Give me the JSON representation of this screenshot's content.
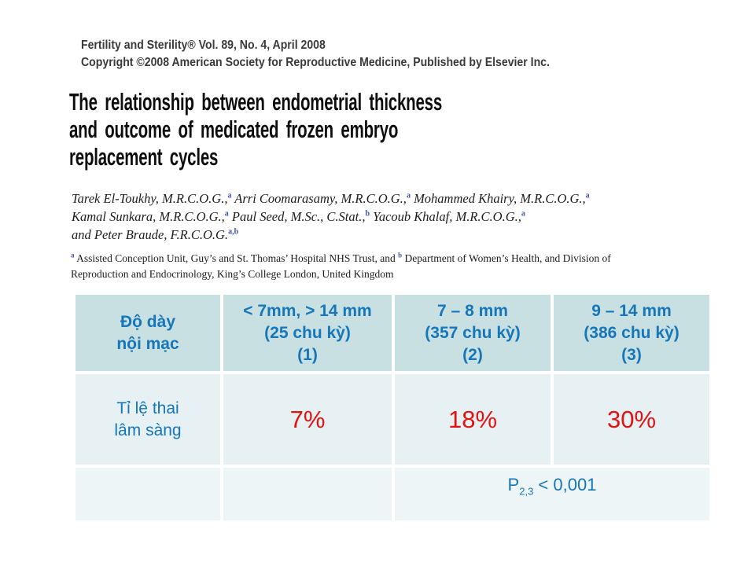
{
  "paper": {
    "journal_line1": "Fertility and Sterility® Vol. 89, No. 4, April 2008",
    "journal_line2": "Copyright ©2008 American Society for Reproductive Medicine, Published by Elsevier Inc.",
    "journal_block": "Fertility and Sterility® Vol. 89, No. 4, April 2008\nCopyright ©2008 American Society for Reproductive Medicine, Published by Elsevier Inc.",
    "title": "The relationship between endometrial thickness\nand outcome of medicated frozen embryo\nreplacement cycles",
    "authors": [
      [
        {
          "t": "Tarek El-Toukhy, M.R.C.O.G.,",
          "s": "a"
        },
        {
          "t": " Arri Coomarasamy, M.R.C.O.G.,",
          "s": "a"
        },
        {
          "t": " Mohammed Khairy, M.R.C.O.G.,",
          "s": "a"
        }
      ],
      [
        {
          "t": "Kamal Sunkara, M.R.C.O.G.,",
          "s": "a"
        },
        {
          "t": " Paul Seed, M.Sc., C.Stat.,",
          "s": "b"
        },
        {
          "t": " Yacoub Khalaf, M.R.C.O.G.,",
          "s": "a"
        }
      ],
      [
        {
          "t": "and Peter Braude, F.R.C.O.G.",
          "s": "a,b"
        }
      ]
    ],
    "affiliations": {
      "sup1": "a",
      "text1": " Assisted Conception Unit, Guy’s and St. Thomas’ Hospital NHS Trust, and ",
      "sup2": "b",
      "text2": " Department of Women’s Health, and Division of",
      "line2": "Reproduction and Endocrinology, King’s College London, United Kingdom"
    }
  },
  "table": {
    "header": [
      "Độ dày\nnội mạc",
      "< 7mm, > 14 mm\n(25 chu kỳ)\n(1)",
      "7 – 8 mm\n(357 chu kỳ)\n(2)",
      "9 – 14 mm\n(386 chu kỳ)\n(3)"
    ],
    "row_label": "Tỉ lệ thai\nlâm sàng",
    "values": [
      "7%",
      "18%",
      "30%"
    ],
    "p_value": {
      "prefix": "P",
      "sub": "2,3",
      "suffix": " < 0,001"
    }
  },
  "colors": {
    "table_header_bg": "#c8e0e2",
    "table_row_bg": "#e7f0f2",
    "table_footer_bg": "#eef5f7",
    "table_text_blue": "#1576b9",
    "value_red": "#e01212",
    "superscript_blue": "#3f55a8"
  }
}
